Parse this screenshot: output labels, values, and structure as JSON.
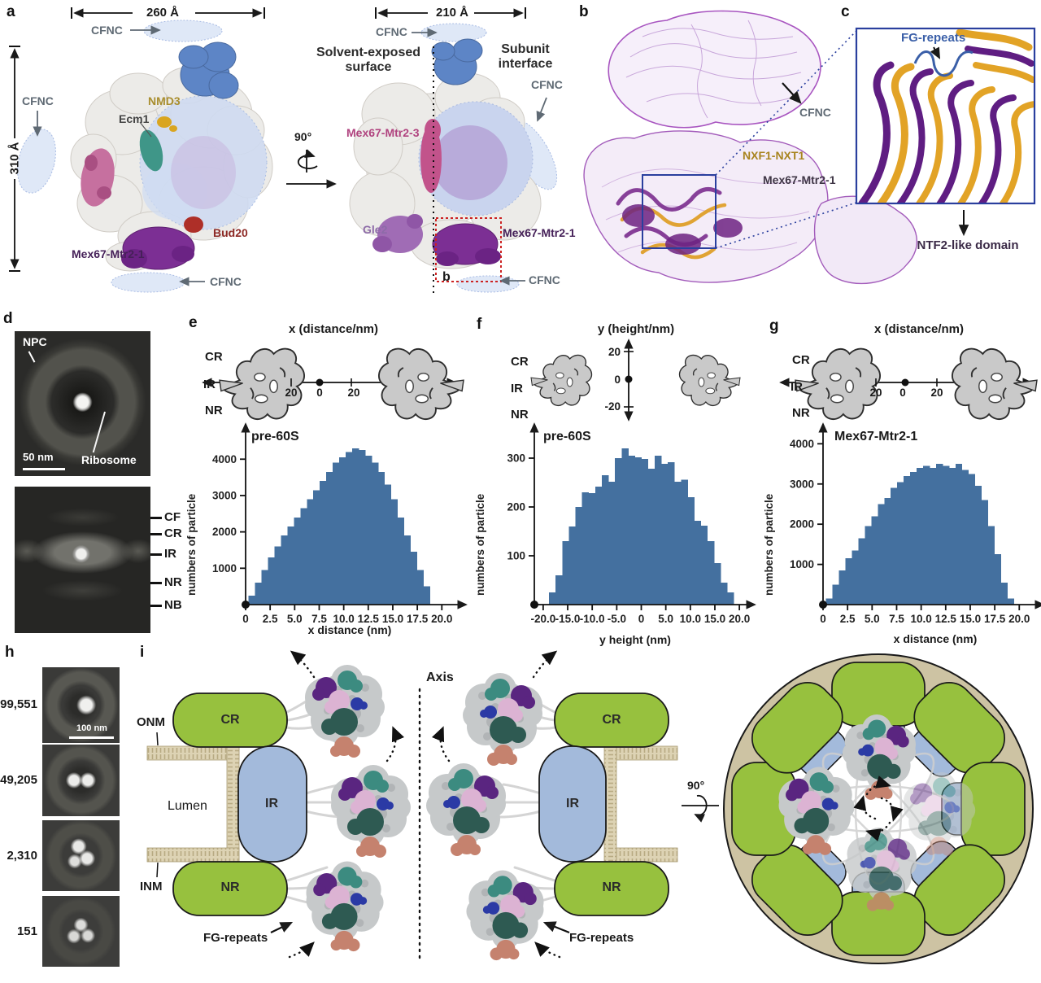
{
  "colors": {
    "bar": "#44709f",
    "green": "#97c13e",
    "ring_blue": "#a3badb",
    "membrane": "#ddd3b4",
    "membrane_line": "#b7aa82",
    "outer_ring": "#cdc3a3",
    "label_gray": "#5f6a74",
    "particle": {
      "base": "#c6c9ca",
      "purple": "#5a2580",
      "teal": "#3c8b80",
      "pink": "#dcb3d3",
      "navy": "#2b3aa5",
      "darkteal": "#2e5a52",
      "salmon": "#c5826e"
    }
  },
  "panel_a": {
    "letter": "a",
    "dim_width_left": "260 Å",
    "dim_height": "310 Å",
    "dim_width_right": "210 Å",
    "rotation": "90°",
    "cfnc": "CFNC",
    "nmd3": "NMD3",
    "ecm1": "Ecm1",
    "bud20": "Bud20",
    "mex67_mtr2_1": "Mex67-Mtr2-1",
    "mex67_mtr2_3": "Mex67-Mtr2-3",
    "gle2": "Gle2",
    "solvent_line1": "Solvent-exposed",
    "solvent_line2": "surface",
    "subunit_line1": "Subunit",
    "subunit_line2": "interface",
    "b_ref": "b"
  },
  "panel_b": {
    "letter": "b",
    "cfnc": "CFNC",
    "nxf1_nxt1": "NXF1-NXT1",
    "mex67_mtr2_1": "Mex67-Mtr2-1"
  },
  "panel_c": {
    "letter": "c",
    "fg_repeats": "FG-repeats",
    "ntf2": "NTF2-like domain"
  },
  "panel_d": {
    "letter": "d",
    "npc": "NPC",
    "ribosome": "Ribosome",
    "scale_bar": "50 nm",
    "ticks": [
      "CF",
      "CR",
      "IR",
      "NR",
      "NB"
    ]
  },
  "cartoon": {
    "rings": [
      "CR",
      "IR",
      "NR"
    ],
    "x_ticks": [
      "20",
      "0",
      "20"
    ],
    "y_ticks": [
      "20",
      "0",
      "-20"
    ]
  },
  "panel_e": {
    "letter": "e",
    "axis_title": "x (distance/nm)"
  },
  "panel_f": {
    "letter": "f",
    "axis_title": "y (height/nm)"
  },
  "panel_g": {
    "letter": "g",
    "axis_title": "x (distance/nm)"
  },
  "panel_h": {
    "letter": "h",
    "counts": [
      "99,551",
      "49,205",
      "2,310",
      "151"
    ],
    "scale_bar": "100 nm"
  },
  "panel_i": {
    "letter": "i",
    "onm": "ONM",
    "inm": "INM",
    "lumen": "Lumen",
    "cr": "CR",
    "ir": "IR",
    "nr": "NR",
    "fg_repeats": "FG-repeats",
    "axis": "Axis",
    "rotation": "90°"
  },
  "chart_data": [
    {
      "type": "bar",
      "panel": "e",
      "title": "pre-60S",
      "xlabel": "x distance (nm)",
      "ylabel": "numbers of particle",
      "xlim": [
        0,
        21.8
      ],
      "ylim": [
        0,
        4700
      ],
      "yticks": [
        1000,
        2000,
        3000,
        4000
      ],
      "xticks": {
        "values": [
          0,
          2.5,
          5,
          7.5,
          10,
          12.5,
          15,
          17.5,
          20
        ],
        "labels": [
          "0",
          "2.5",
          "5.0",
          "7.5",
          "10.0",
          "12.5",
          "15.0",
          "17.5",
          "20.0"
        ]
      },
      "x_start": 0.3,
      "bin_width": 0.66,
      "values": [
        250,
        600,
        950,
        1300,
        1600,
        1900,
        2150,
        2400,
        2650,
        2900,
        3150,
        3400,
        3650,
        3900,
        4050,
        4200,
        4300,
        4250,
        4100,
        3900,
        3650,
        3300,
        2900,
        2400,
        1900,
        1450,
        950,
        500
      ]
    },
    {
      "type": "bar",
      "panel": "f",
      "title": "pre-60S",
      "xlabel": "y height (nm)",
      "ylabel": "numbers of particle",
      "xlim": [
        -21.8,
        21.8
      ],
      "ylim": [
        0,
        350
      ],
      "yticks": [
        100,
        200,
        300
      ],
      "xticks": {
        "values": [
          -20,
          -15,
          -10,
          -5,
          0,
          5,
          10,
          15,
          20
        ],
        "labels": [
          "-20.0",
          "-15.0",
          "-10.0",
          "-5.0",
          "0",
          "5.0",
          "10.0",
          "15.0",
          "20.0"
        ]
      },
      "x_start": -18.8,
      "bin_width": 1.345,
      "values": [
        25,
        60,
        130,
        160,
        200,
        230,
        228,
        242,
        265,
        252,
        300,
        320,
        305,
        302,
        298,
        278,
        305,
        288,
        292,
        252,
        256,
        220,
        172,
        162,
        130,
        85,
        45,
        25
      ]
    },
    {
      "type": "bar",
      "panel": "g",
      "title": "Mex67-Mtr2-1",
      "xlabel": "x distance (nm)",
      "ylabel": "numbers of particle",
      "xlim": [
        0,
        21.8
      ],
      "ylim": [
        0,
        4250
      ],
      "yticks": [
        1000,
        2000,
        3000,
        4000
      ],
      "xticks": {
        "values": [
          0,
          2.5,
          5,
          7.5,
          10,
          12.5,
          15,
          17.5,
          20
        ],
        "labels": [
          "0",
          "2.5",
          "5.0",
          "7.5",
          "10.0",
          "12.5",
          "15.0",
          "17.5",
          "20.0"
        ]
      },
      "x_start": 0.3,
      "bin_width": 0.66,
      "values": [
        150,
        500,
        850,
        1150,
        1350,
        1650,
        1950,
        2200,
        2500,
        2650,
        2900,
        3050,
        3200,
        3300,
        3400,
        3450,
        3400,
        3500,
        3450,
        3400,
        3500,
        3350,
        3250,
        2950,
        2600,
        1950,
        1250,
        550,
        150
      ]
    }
  ]
}
